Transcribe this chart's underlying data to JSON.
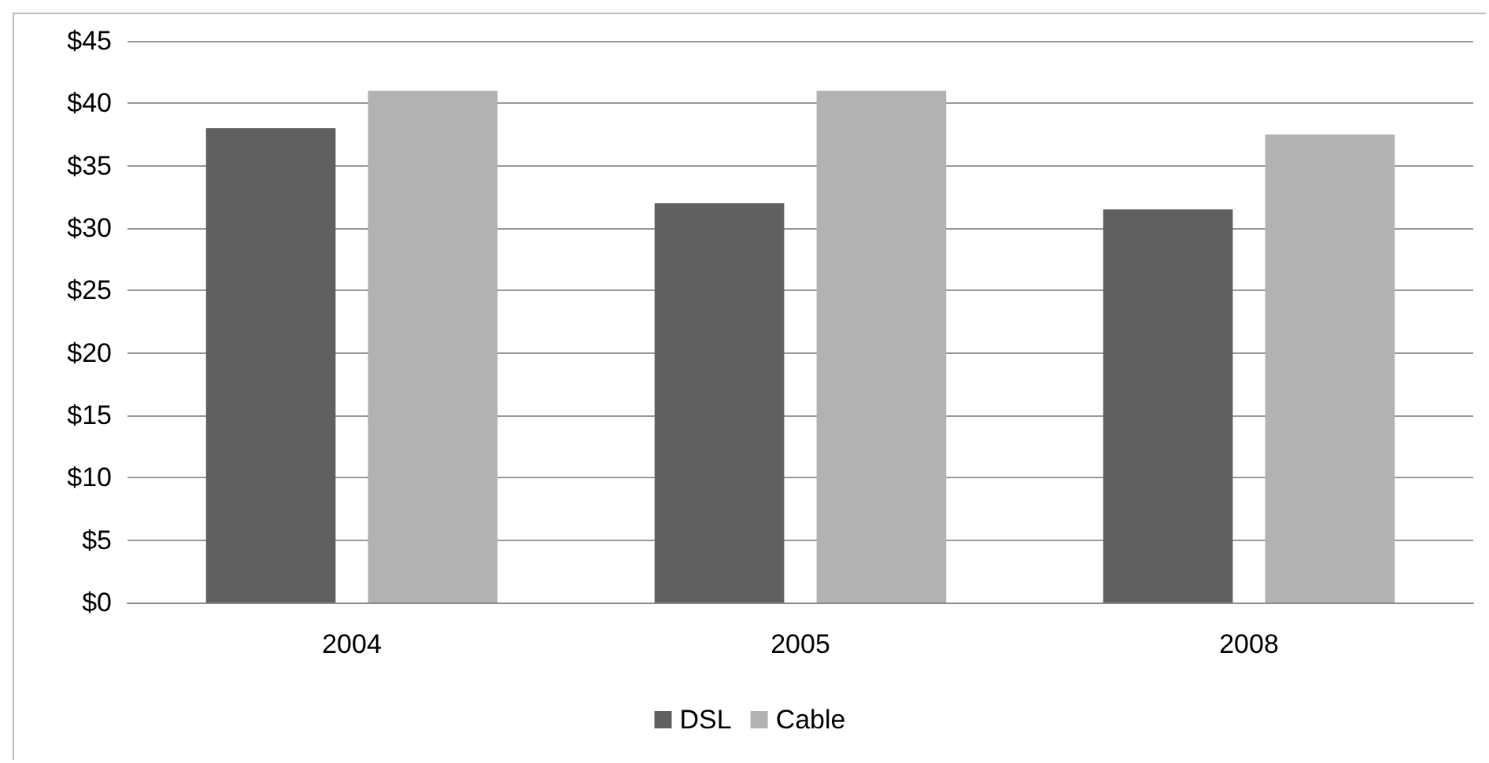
{
  "chart_data": {
    "type": "bar",
    "categories": [
      "2004",
      "2005",
      "2008"
    ],
    "series": [
      {
        "name": "DSL",
        "color": "#606060",
        "values": [
          38,
          32,
          31.5
        ]
      },
      {
        "name": "Cable",
        "color": "#b2b2b2",
        "values": [
          41,
          41,
          37.5
        ]
      }
    ],
    "ylim": [
      0,
      45
    ],
    "yticks": [
      {
        "value": 0,
        "label": "$0"
      },
      {
        "value": 5,
        "label": "$5"
      },
      {
        "value": 10,
        "label": "$10"
      },
      {
        "value": 15,
        "label": "$15"
      },
      {
        "value": 20,
        "label": "$20"
      },
      {
        "value": 25,
        "label": "$25"
      },
      {
        "value": 30,
        "label": "$30"
      },
      {
        "value": 35,
        "label": "$35"
      },
      {
        "value": 40,
        "label": "$40"
      },
      {
        "value": 45,
        "label": "$45"
      }
    ],
    "grid": "y",
    "legend": "bottom"
  }
}
